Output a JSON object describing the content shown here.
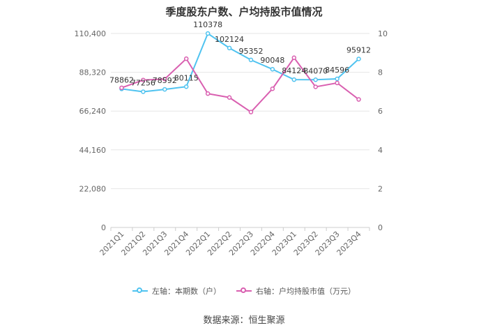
{
  "colors": {
    "left_series": "#4fc3f0",
    "right_series": "#d95fb0",
    "grid": "#e6e6e6",
    "axis": "#cccccc"
  },
  "chart_data": {
    "type": "line",
    "title": "季度股东户数、户均持股市值情况",
    "categories": [
      "2021Q1",
      "2021Q2",
      "2021Q3",
      "2021Q4",
      "2022Q1",
      "2022Q2",
      "2022Q3",
      "2022Q4",
      "2023Q1",
      "2023Q2",
      "2023Q3",
      "2023Q4"
    ],
    "left_axis": {
      "ylim": [
        0,
        110400
      ],
      "ticks": [
        "0",
        "22,080",
        "44,160",
        "66,240",
        "88,320",
        "110,400"
      ]
    },
    "right_axis": {
      "ylim": [
        0,
        10
      ],
      "ticks": [
        "0",
        "2",
        "4",
        "6",
        "8",
        "10"
      ]
    },
    "series": [
      {
        "name": "左轴：本期数（户）",
        "axis": "left",
        "values": [
          78862,
          77256,
          78592,
          80115,
          110378,
          102124,
          95352,
          90048,
          84124,
          84070,
          84596,
          95912
        ],
        "labels": [
          "78862",
          "77256",
          "78592",
          "80115",
          "110378",
          "102124",
          "95352",
          "90048",
          "84124",
          "84070",
          "84596",
          "95912"
        ]
      },
      {
        "name": "右轴：户均持股市值（万元）",
        "axis": "right",
        "values": [
          7.2,
          7.6,
          7.65,
          8.7,
          6.9,
          6.7,
          5.95,
          7.15,
          8.75,
          7.25,
          7.45,
          6.6
        ]
      }
    ],
    "legend_position": "bottom",
    "grid": true
  },
  "source": "数据来源：恒生聚源"
}
